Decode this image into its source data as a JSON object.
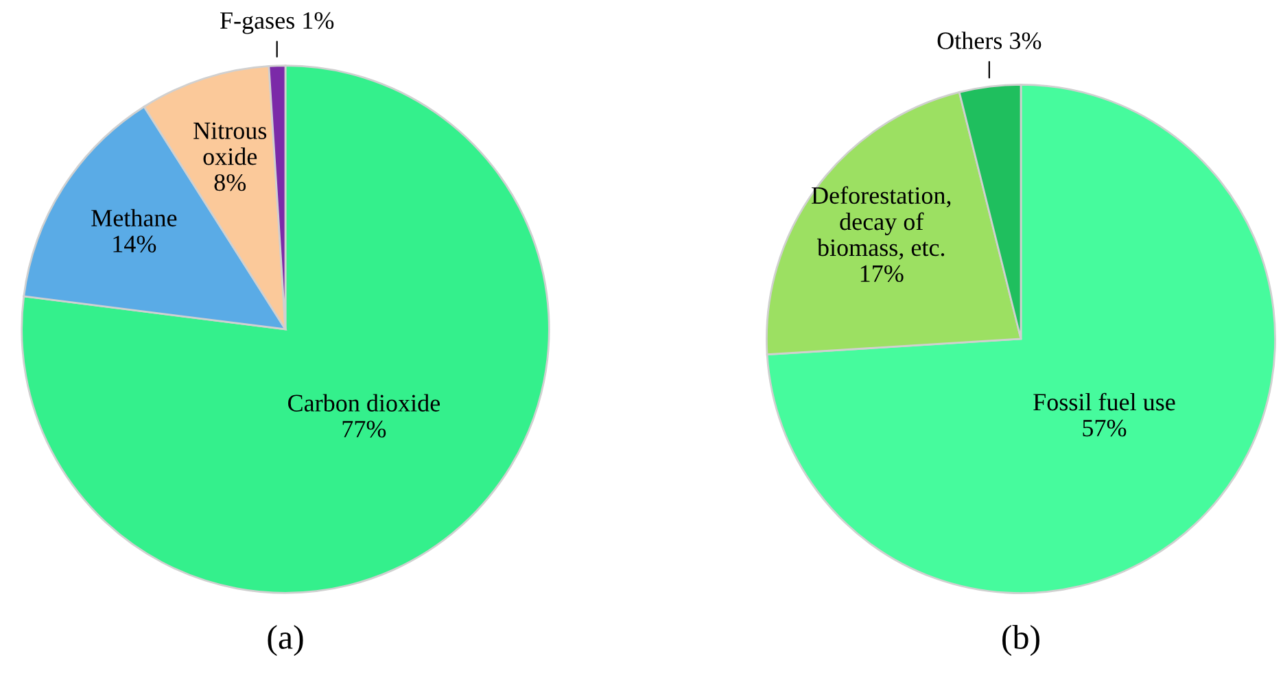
{
  "chart_data": [
    {
      "type": "pie",
      "xlabel": "(a)",
      "categories": [
        "Carbon dioxide",
        "Methane",
        "Nitrous\noxide",
        "F-gases"
      ],
      "values": [
        77,
        14,
        8,
        1
      ],
      "value_labels": [
        "77%",
        "14%",
        "8%",
        "1%"
      ],
      "colors": [
        "#34f08c",
        "#5aabe6",
        "#fbc99a",
        "#7b2aa8"
      ]
    },
    {
      "type": "pie",
      "xlabel": "(b)",
      "categories": [
        "Fossil fuel use",
        "Deforestation,\ndecay of\nbiomass, etc.",
        "Others"
      ],
      "values": [
        57,
        17,
        3
      ],
      "value_labels": [
        "57%",
        "17%",
        "3%"
      ],
      "colors": [
        "#46fb9d",
        "#9ce062",
        "#1fbf5e"
      ]
    }
  ]
}
